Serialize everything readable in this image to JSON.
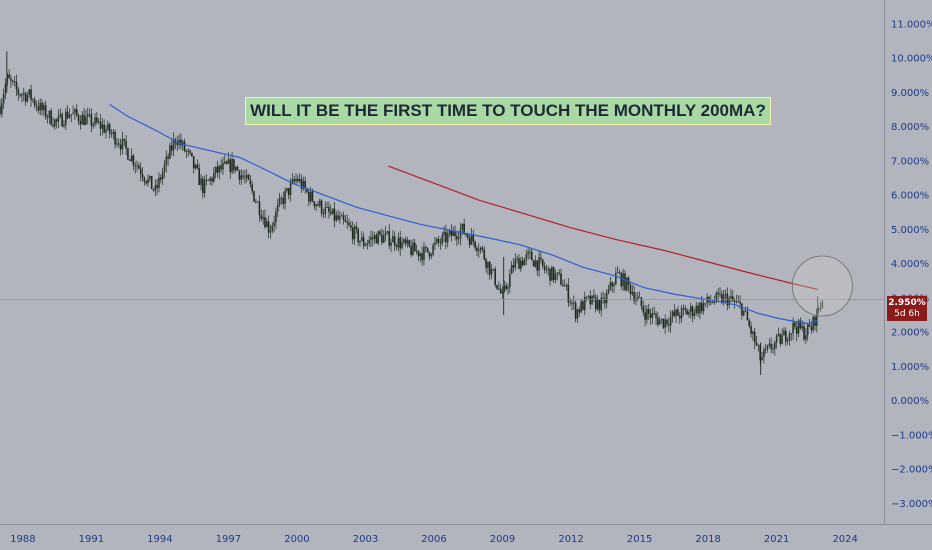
{
  "annotation": {
    "headline": "WILL IT BE THE FIRST TIME TO TOUCH THE MONTHLY 200MA?"
  },
  "price_label": {
    "value": "2.950%",
    "countdown": "5d 6h",
    "color": "#8b1a1a"
  },
  "colors": {
    "background": "#b2b5be",
    "candles": "#1f2a1f",
    "ma_short": "#2f5fd0",
    "ma_200": "#b22222",
    "axis_text": "#1e3a8a"
  },
  "chart_data": {
    "type": "candlestick",
    "title": "",
    "xlabel": "",
    "ylabel": "",
    "ylim": [
      -3.6,
      11.7
    ],
    "xlim": [
      1987.0,
      2025.7
    ],
    "y_ticks": [
      "11.000%",
      "10.000%",
      "9.000%",
      "8.000%",
      "7.000%",
      "6.000%",
      "5.000%",
      "4.000%",
      "3.000%",
      "2.000%",
      "1.000%",
      "0.000%",
      "−1.000%",
      "−2.000%",
      "−3.000%"
    ],
    "y_tick_values": [
      11,
      10,
      9,
      8,
      7,
      6,
      5,
      4,
      3,
      2,
      1,
      0,
      -1,
      -2,
      -3
    ],
    "x_ticks": [
      "1988",
      "1991",
      "1994",
      "1997",
      "2000",
      "2003",
      "2006",
      "2009",
      "2012",
      "2015",
      "2018",
      "2021",
      "2024"
    ],
    "x_tick_values": [
      1988,
      1991,
      1994,
      1997,
      2000,
      2003,
      2006,
      2009,
      2012,
      2015,
      2018,
      2021,
      2024
    ],
    "current_price": 2.95,
    "price_path": {
      "x": [
        1987.0,
        1987.3,
        1987.8,
        1988.3,
        1988.8,
        1989.5,
        1990.0,
        1990.8,
        1991.5,
        1992.2,
        1993.0,
        1993.8,
        1994.7,
        1995.3,
        1995.9,
        1996.5,
        1997.2,
        1997.9,
        1998.8,
        1999.3,
        2000.0,
        2000.5,
        2001.3,
        2002.2,
        2002.9,
        2003.5,
        2004.3,
        2005.0,
        2005.6,
        2006.4,
        2007.2,
        2008.0,
        2008.7,
        2009.0,
        2009.5,
        2010.2,
        2010.9,
        2011.6,
        2012.2,
        2012.7,
        2013.4,
        2014.0,
        2014.7,
        2015.2,
        2016.0,
        2016.6,
        2017.2,
        2018.1,
        2018.8,
        2019.5,
        2020.0,
        2020.3,
        2020.8,
        2021.2,
        2021.8,
        2022.2,
        2022.5,
        2022.8,
        2023.0
      ],
      "y": [
        8.6,
        9.4,
        9.0,
        8.9,
        8.5,
        8.1,
        8.4,
        8.2,
        8.0,
        7.6,
        6.9,
        6.1,
        7.7,
        7.1,
        6.2,
        6.7,
        6.9,
        6.3,
        5.0,
        5.8,
        6.5,
        6.0,
        5.5,
        5.1,
        4.6,
        4.8,
        4.7,
        4.4,
        4.3,
        4.7,
        5.0,
        4.5,
        3.5,
        3.0,
        4.0,
        4.2,
        3.8,
        3.5,
        2.6,
        2.9,
        2.8,
        3.7,
        3.2,
        2.6,
        2.3,
        2.5,
        2.6,
        2.9,
        3.0,
        2.7,
        1.8,
        1.2,
        1.6,
        1.8,
        2.2,
        2.0,
        2.1,
        2.6,
        2.95
      ]
    },
    "series": [
      {
        "name": "",
        "x": [
          1991.8,
          1992.6,
          1993.8,
          1994.9,
          1996.2,
          1997.5,
          1998.6,
          1999.8,
          2001.2,
          2002.6,
          2004.0,
          2005.4,
          2006.9,
          2008.4,
          2009.8,
          2011.2,
          2012.5,
          2013.9,
          2015.2,
          2016.6,
          2018.0,
          2019.2,
          2020.2,
          2021.1,
          2021.9,
          2022.4,
          2022.8
        ],
        "values": [
          8.65,
          8.3,
          7.9,
          7.5,
          7.3,
          7.1,
          6.75,
          6.35,
          6.0,
          5.65,
          5.4,
          5.15,
          4.95,
          4.75,
          4.55,
          4.25,
          3.9,
          3.65,
          3.3,
          3.1,
          2.95,
          2.8,
          2.55,
          2.4,
          2.3,
          2.25,
          2.35
        ]
      },
      {
        "name": "",
        "x": [
          2004.0,
          2006.0,
          2008.0,
          2010.0,
          2012.0,
          2014.0,
          2016.0,
          2018.0,
          2020.0,
          2021.5,
          2022.8
        ],
        "values": [
          6.85,
          6.35,
          5.85,
          5.45,
          5.05,
          4.7,
          4.4,
          4.05,
          3.7,
          3.45,
          3.25
        ]
      }
    ],
    "circle_annotation": {
      "x": 2023.0,
      "y": 3.35
    },
    "grid": false,
    "legend": "none"
  }
}
